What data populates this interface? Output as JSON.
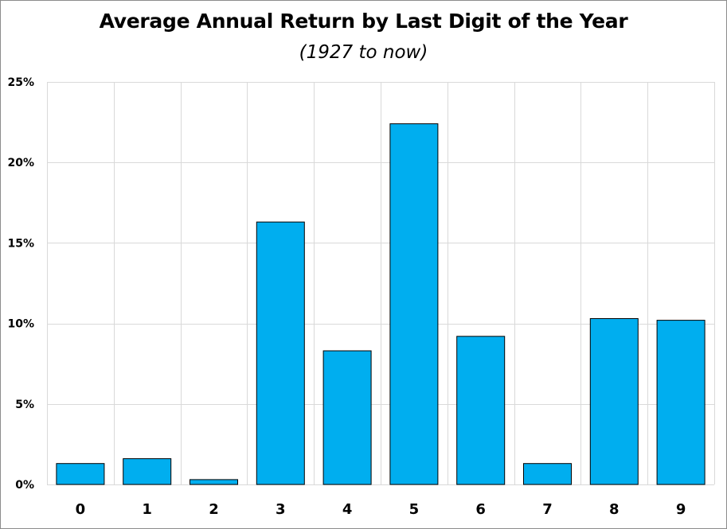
{
  "chart_data": {
    "type": "bar",
    "title": "Average Annual Return by Last Digit of the Year",
    "subtitle": "(1927 to now)",
    "xlabel": "",
    "ylabel": "",
    "categories": [
      "0",
      "1",
      "2",
      "3",
      "4",
      "5",
      "6",
      "7",
      "8",
      "9"
    ],
    "values": [
      1.3,
      1.6,
      0.3,
      16.3,
      8.3,
      22.4,
      9.2,
      1.3,
      10.3,
      10.2
    ],
    "value_format": "percent",
    "ylim": [
      0,
      25
    ],
    "yticks": [
      0,
      5,
      10,
      15,
      20,
      25
    ],
    "ytick_labels": [
      "0%",
      "5%",
      "10%",
      "15%",
      "20%",
      "25%"
    ],
    "grid": true,
    "legend": "none",
    "colors": {
      "bar_fill": "#00AEEF",
      "bar_stroke": "#000000",
      "grid": "#d9d9d9",
      "text": "#000000"
    }
  }
}
